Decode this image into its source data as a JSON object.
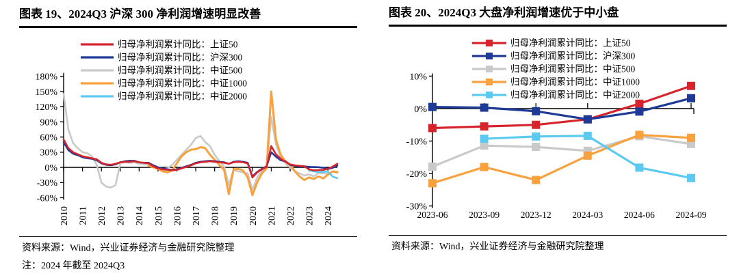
{
  "figures": [
    {
      "title": "图表 19、2024Q3 沪深 300 净利润增速明显改善",
      "source": "资料来源：Wind，兴业证券经济与金融研究院整理",
      "note": "注：2024 年截至 2024Q3"
    },
    {
      "title": "图表 20、2024Q3 大盘净利润增速优于中小盘",
      "source": "资料来源：Wind，兴业证券经济与金融研究院整理"
    }
  ],
  "colors": {
    "sse50_red": "#D7242C",
    "csi300_blue": "#1E3A96",
    "csi500_gray": "#C9C9C9",
    "csi1000_orange": "#F9A13C",
    "csi2000_cyan": "#5BC9F0",
    "axis_black": "#000000"
  },
  "chart_data": [
    {
      "type": "line",
      "title": "2024Q3 沪深 300 净利润增速明显改善",
      "xlabel": "",
      "ylabel": "",
      "grid": false,
      "legend_position": "top-left-inside",
      "x_unit": "quarter",
      "x_start": "2010Q1",
      "x_end": "2024Q3",
      "x_tick_labels": [
        "2010",
        "2011",
        "2012",
        "2013",
        "2014",
        "2015",
        "2016",
        "2017",
        "2018",
        "2019",
        "2020",
        "2021",
        "2022",
        "2023",
        "2024"
      ],
      "ylim": [
        -60,
        180
      ],
      "y_step": 30,
      "y_tick_labels": [
        "180%",
        "150%",
        "120%",
        "90%",
        "60%",
        "30%",
        "0%",
        "-30%",
        "-60%"
      ],
      "series": [
        {
          "id": "sse50",
          "name": "归母净利润累计同比：上证50",
          "color": "#D7242C",
          "start_index": 0,
          "values": [
            55,
            38,
            30,
            26,
            22,
            20,
            18,
            16,
            9,
            6,
            5,
            7,
            10,
            11,
            11,
            12,
            10,
            9,
            8,
            2,
            -2,
            -4,
            -5,
            -6,
            -5,
            -2,
            1,
            4,
            8,
            10,
            11,
            12,
            11,
            10,
            9,
            7,
            10,
            11,
            10,
            8,
            -20,
            -10,
            -4,
            1,
            42,
            26,
            17,
            11,
            6,
            4,
            3,
            2,
            -4,
            -6,
            -5.5,
            -5,
            -3.3,
            1.5,
            7
          ]
        },
        {
          "id": "csi300",
          "name": "归母净利润累计同比：沪深300",
          "color": "#1E3A96",
          "start_index": 0,
          "values": [
            50,
            34,
            27,
            24,
            20,
            18,
            17,
            14,
            8,
            5,
            4,
            6,
            10,
            12,
            13,
            13,
            10,
            9,
            9,
            4,
            0,
            -2,
            -4,
            -5,
            -4,
            -1,
            2,
            5,
            9,
            11,
            12,
            13,
            12,
            11,
            10,
            7,
            11,
            12,
            11,
            9,
            -18,
            -9,
            -3,
            2,
            30,
            21,
            14,
            12,
            5,
            3,
            2,
            2,
            1,
            0.5,
            0.3,
            -0.8,
            -3.3,
            -0.9,
            3.2
          ]
        },
        {
          "id": "csi500",
          "name": "归母净利润累计同比：中证500",
          "color": "#C9C9C9",
          "start_index": 0,
          "values": [
            145,
            75,
            48,
            38,
            30,
            28,
            22,
            5,
            -30,
            -38,
            -40,
            -35,
            8,
            10,
            9,
            10,
            7,
            6,
            5,
            4,
            0,
            -3,
            -2,
            5,
            15,
            25,
            35,
            45,
            58,
            62,
            50,
            42,
            25,
            12,
            2,
            -35,
            -5,
            -8,
            -10,
            -12,
            -45,
            -20,
            -8,
            2,
            100,
            45,
            20,
            8,
            0,
            -8,
            -12,
            -16,
            -14,
            -17.9,
            -11.4,
            -11.8,
            -13,
            -8.5,
            -10.9
          ]
        },
        {
          "id": "csi1000",
          "name": "归母净利润累计同比：中证1000",
          "color": "#F9A13C",
          "start_index": 18,
          "values": [
            3,
            0,
            -3,
            -8,
            -10,
            -6,
            8,
            22,
            30,
            35,
            36,
            40,
            38,
            25,
            15,
            5,
            -5,
            -53,
            -4,
            -3,
            -6,
            -20,
            -55,
            -30,
            -12,
            -2,
            150,
            55,
            25,
            12,
            5,
            -8,
            -18,
            -25,
            -20,
            -23,
            -18,
            -22,
            -14.5,
            -8.1,
            -9
          ]
        },
        {
          "id": "csi2000",
          "name": "归母净利润累计同比：中证2000",
          "color": "#5BC9F0",
          "start_index": 52,
          "values": [
            -6,
            -8,
            -9.3,
            -8.6,
            -8.4,
            -18.2,
            -21.4
          ]
        }
      ]
    },
    {
      "type": "line",
      "title": "2024Q3 大盘净利润增速优于中小盘",
      "xlabel": "",
      "ylabel": "",
      "grid": false,
      "marker": "square",
      "legend_position": "top-right-inside",
      "categories": [
        "2023-06",
        "2023-09",
        "2023-12",
        "2024-03",
        "2024-06",
        "2024-09"
      ],
      "ylim": [
        -30,
        10
      ],
      "y_step": 10,
      "y_tick_labels": [
        "10%",
        "0%",
        "-10%",
        "-20%",
        "-30%"
      ],
      "series": [
        {
          "id": "sse50",
          "name": "归母净利润累计同比：上证50",
          "color": "#D7242C",
          "values": [
            -6,
            -5.5,
            -5,
            -3.3,
            1.5,
            7
          ]
        },
        {
          "id": "csi300",
          "name": "归母净利润累计同比：沪深300",
          "color": "#1E3A96",
          "values": [
            0.5,
            0.3,
            -0.8,
            -3.3,
            -0.9,
            3.2
          ]
        },
        {
          "id": "csi500",
          "name": "归母净利润累计同比：中证500",
          "color": "#C9C9C9",
          "values": [
            -17.9,
            -11.4,
            -11.8,
            -13,
            -8.5,
            -10.9
          ]
        },
        {
          "id": "csi1000",
          "name": "归母净利润累计同比：中证1000",
          "color": "#F9A13C",
          "values": [
            -23,
            -18,
            -22,
            -14.5,
            -8.1,
            -9
          ]
        },
        {
          "id": "csi2000",
          "name": "归母净利润累计同比：中证2000",
          "color": "#5BC9F0",
          "values": [
            null,
            -9.3,
            -8.6,
            -8.4,
            -18.2,
            -21.4
          ]
        }
      ]
    }
  ]
}
